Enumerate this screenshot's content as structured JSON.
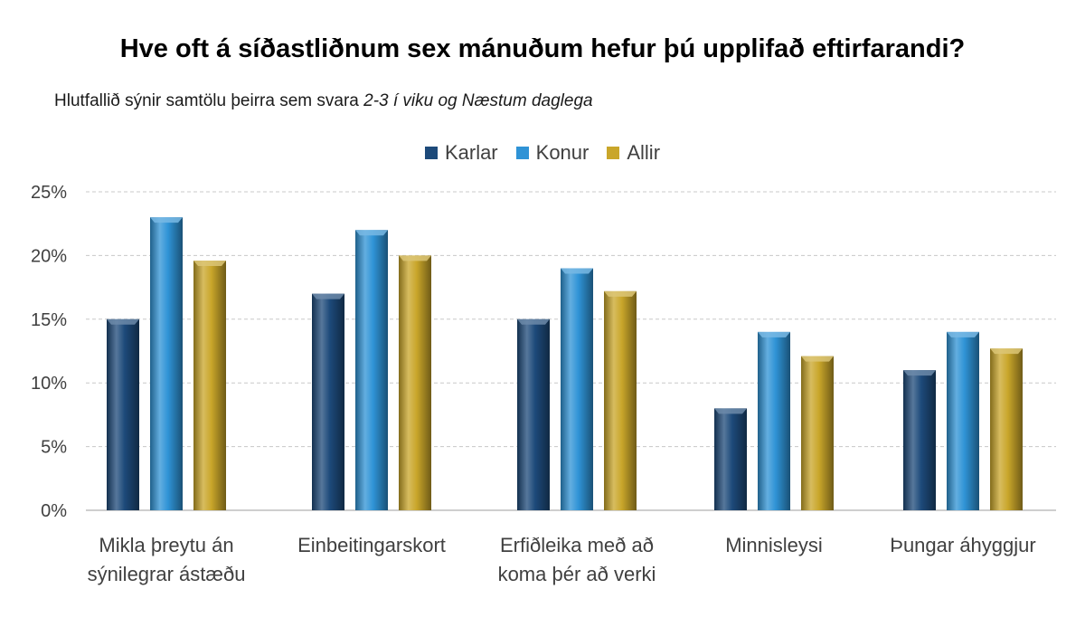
{
  "title": "Hve oft á síðastliðnum sex mánuðum hefur þú upplifað eftirfarandi?",
  "subtitle": {
    "plain": "Hlutfallið sýnir samtölu þeirra sem svara ",
    "italic": "2-3 í viku og Næstum  daglega"
  },
  "colors": {
    "Karlar": "#1d4a7a",
    "Konur": "#2f93d6",
    "Allir": "#c9a62a"
  },
  "chart_data": {
    "type": "bar",
    "title": "Hve oft á síðastliðnum sex mánuðum hefur þú upplifað eftirfarandi?",
    "subtitle": "Hlutfallið sýnir samtölu þeirra sem svara 2-3 í viku og Næstum  daglega",
    "categories": [
      [
        "Mikla þreytu án",
        "sýnilegrar ástæðu"
      ],
      [
        "Einbeitingarskort"
      ],
      [
        "Erfiðleika með að",
        "koma þér að verki"
      ],
      [
        "Minnisleysi"
      ],
      [
        "Þungar áhyggjur"
      ]
    ],
    "series": [
      {
        "name": "Karlar",
        "values": [
          15,
          17,
          15,
          8,
          11
        ]
      },
      {
        "name": "Konur",
        "values": [
          23,
          22,
          19,
          14,
          14
        ]
      },
      {
        "name": "Allir",
        "values": [
          19.6,
          20,
          17.2,
          12.1,
          12.7
        ]
      }
    ],
    "ylim": [
      0,
      25
    ],
    "yticks": [
      0,
      5,
      10,
      15,
      20,
      25
    ],
    "ytick_labels": [
      "0%",
      "5%",
      "10%",
      "15%",
      "20%",
      "25%"
    ],
    "grid": true,
    "legend": "top-center"
  }
}
